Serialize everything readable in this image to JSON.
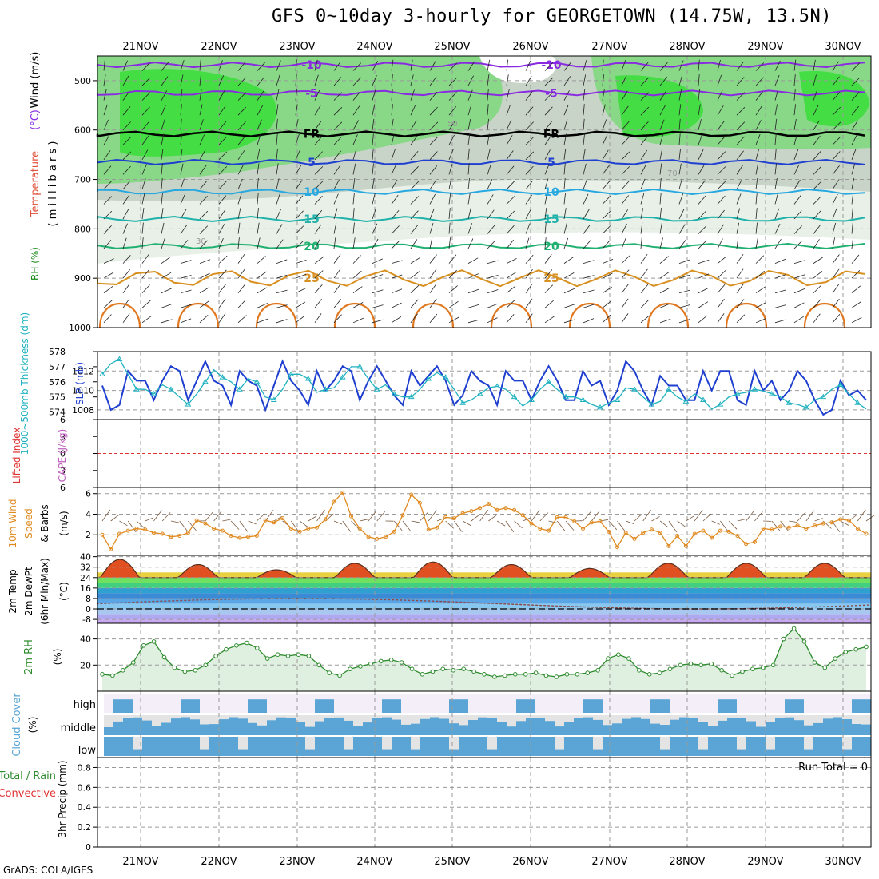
{
  "title": "GFS 0~10day 3-hourly for GEORGETOWN (14.75W, 13.5N)",
  "credit": "GrADS: COLA/IGES",
  "colors": {
    "purple": "#8a2be2",
    "blue": "#1f3fd0",
    "cyan": "#28a8e0",
    "teal": "#20b2aa",
    "green": "#20b070",
    "orange": "#d89020",
    "cloud": "#5aa5d5"
  },
  "chart_data": [
    {
      "type": "heatmap",
      "name": "upper-air",
      "dates": [
        "21NOV",
        "22NOV",
        "23NOV",
        "24NOV",
        "25NOV",
        "26NOV",
        "27NOV",
        "28NOV",
        "29NOV",
        "30NOV"
      ],
      "ylabel_parts": [
        "RH (%)",
        "Temperature",
        "(°C)",
        "Wind (m/s)",
        "( m i l l i b a r s )"
      ],
      "yticks": [
        500,
        600,
        700,
        800,
        900,
        1000
      ],
      "ylim": [
        450,
        1000
      ],
      "isotherms": [
        {
          "label": "-10",
          "p": 468,
          "color": "#8a2be2"
        },
        {
          "label": "-5",
          "p": 525,
          "color": "#8a2be2"
        },
        {
          "label": "FR",
          "p": 608,
          "color": "#000000"
        },
        {
          "label": "5",
          "p": 665,
          "color": "#1f3fd0"
        },
        {
          "label": "10",
          "p": 725,
          "color": "#28a8e0"
        },
        {
          "label": "15",
          "p": 780,
          "color": "#20b2aa"
        },
        {
          "label": "20",
          "p": 835,
          "color": "#20b070"
        },
        {
          "label": "25",
          "p": 900,
          "color": "#d89020"
        }
      ],
      "rh_labels": [
        "30",
        "50",
        "70"
      ]
    },
    {
      "type": "line",
      "name": "slp-thickness",
      "ylabel_left": "1000~500mb Thickness (dm)",
      "ylabel_right": "SLP (mb)",
      "yticks_left": [
        574,
        575,
        576,
        577,
        578
      ],
      "yticks_right": [
        1008,
        1010,
        1012
      ],
      "ylim_left": [
        573.5,
        578
      ],
      "ylim_right": [
        1007,
        1014
      ],
      "series": [
        {
          "name": "SLP",
          "axis": "right",
          "color": "#1f3fd0",
          "values": [
            1010.5,
            1008,
            1008.5,
            1012,
            1011,
            1011,
            1009,
            1011,
            1012.5,
            1012,
            1009,
            1011,
            1013,
            1011,
            1010.5,
            1008.5,
            1012,
            1011,
            1010.5,
            1008,
            1010.5,
            1013,
            1011,
            1010,
            1008.5,
            1012,
            1010,
            1011,
            1012.5,
            1012,
            1009,
            1011,
            1012.5,
            1011,
            1009.5,
            1008.5,
            1012,
            1010.5,
            1011.5,
            1012.5,
            1011,
            1008.5,
            1009.5,
            1012,
            1011,
            1010.5,
            1008.5,
            1012,
            1011,
            1011,
            1009,
            1011,
            1012.5,
            1011,
            1009,
            1009,
            1012,
            1010.5,
            1011,
            1008.5,
            1010,
            1013,
            1012,
            1010,
            1008.5,
            1011.5,
            1010.5,
            1010.5,
            1009,
            1009,
            1012,
            1010,
            1012,
            1012,
            1009,
            1008.5,
            1012,
            1010,
            1011,
            1009,
            1010,
            1012,
            1011,
            1009,
            1007.5,
            1008,
            1011,
            1009.5,
            1010,
            1009
          ]
        },
        {
          "name": "Thickness",
          "axis": "left",
          "color": "#20b2c0",
          "values": [
            576.5,
            577.2,
            577.5,
            576.5,
            575.5,
            575.5,
            575.2,
            575.8,
            575.5,
            575,
            574.5,
            575.2,
            576,
            576.8,
            576.3,
            576,
            575.5,
            576.2,
            576,
            575,
            574.8,
            575.5,
            576.5,
            576.5,
            576.2,
            575.3,
            575.5,
            575.6,
            576.3,
            577,
            577,
            576.2,
            575.5,
            575.8,
            575.2,
            575,
            575,
            575.5,
            576.2,
            576.6,
            576.3,
            575.5,
            574.6,
            574.8,
            575.2,
            575.6,
            575.7,
            575.5,
            575,
            574.4,
            574.8,
            575.5,
            576,
            575.5,
            575,
            575,
            574.8,
            574.5,
            574.3,
            574.6,
            574.8,
            575.6,
            575.5,
            575,
            574.5,
            574.7,
            575.5,
            575,
            574.7,
            575.2,
            574.8,
            574.2,
            574.5,
            575,
            575.2,
            575.3,
            575.5,
            575.4,
            575.2,
            575,
            574.6,
            574.5,
            574.3,
            574.8,
            575,
            575.5,
            575.8,
            575.2,
            574.6,
            574.2
          ]
        }
      ]
    },
    {
      "type": "line",
      "name": "lifted-index",
      "ylabel_left": "Lifted Index",
      "ylabel_right": "CAPE (J/kg)",
      "yticks": [
        -6,
        -3,
        0,
        3,
        6
      ],
      "ylim": [
        -6,
        6
      ],
      "series": []
    },
    {
      "type": "line",
      "name": "wind10m",
      "ylabel": "10m Wind Speed (m/s) & Barbs",
      "yticks": [
        2,
        4,
        6
      ],
      "ylim": [
        0,
        6.6
      ],
      "series": [
        {
          "name": "Speed",
          "color": "#e08a20",
          "values": [
            2,
            0.6,
            2.1,
            2.4,
            2.6,
            2.5,
            2.2,
            2.1,
            1.8,
            1.9,
            2.2,
            3.4,
            3.1,
            2.6,
            2.4,
            1.9,
            1.7,
            1.8,
            1.9,
            3.4,
            3.2,
            3.6,
            2.6,
            2.3,
            2.6,
            2.7,
            3.5,
            5.2,
            6.1,
            3.8,
            2.6,
            1.8,
            1.6,
            1.8,
            2.3,
            3.9,
            5.9,
            5.1,
            2.5,
            2.7,
            3.7,
            3.6,
            4.1,
            4.3,
            4.6,
            5.0,
            4.4,
            4.6,
            4.4,
            3.9,
            3.1,
            2.6,
            2.4,
            3.7,
            3.7,
            3.3,
            2.6,
            3.2,
            3.3,
            2.3,
            0.8,
            2.2,
            1.6,
            2.2,
            2.5,
            2.2,
            0.9,
            1.9,
            0.9,
            2.1,
            2.4,
            1.7,
            2.4,
            2.3,
            1.9,
            1.1,
            1.3,
            2.6,
            2.5,
            2.8,
            2.7,
            2.9,
            2.6,
            2.9,
            3.1,
            3.2,
            3.5,
            3.4,
            2.6,
            2.1
          ]
        }
      ]
    },
    {
      "type": "area",
      "name": "temperature",
      "ylabel": "2m Temp 2m DewPt (6hr Min/Max) (°C)",
      "yticks": [
        -8,
        0,
        8,
        16,
        24,
        32,
        40
      ],
      "ylim": [
        -11,
        41
      ],
      "daily_max": [
        38,
        34,
        30,
        35,
        36,
        34,
        31,
        35,
        35,
        35
      ],
      "daily_min": [
        23,
        23,
        23,
        23,
        23,
        22,
        22,
        22,
        22,
        22
      ]
    },
    {
      "type": "area",
      "name": "rh2m",
      "ylabel": "2m RH (%)",
      "yticks": [
        20,
        40
      ],
      "ylim": [
        0,
        52
      ],
      "series": [
        {
          "name": "RH",
          "color": "#2e8b2e",
          "values": [
            13,
            12,
            16,
            22,
            35,
            38,
            26,
            18,
            15,
            16,
            20,
            27,
            32,
            35,
            37,
            33,
            25,
            28,
            27,
            28,
            27,
            20,
            14,
            12,
            17,
            19,
            21,
            23,
            24,
            22,
            17,
            13,
            15,
            17,
            16,
            17,
            15,
            13,
            11,
            12,
            13,
            13,
            14,
            12,
            11,
            13,
            13,
            14,
            16,
            25,
            28,
            25,
            16,
            13,
            14,
            17,
            20,
            21,
            20,
            21,
            16,
            12,
            15,
            17,
            18,
            20,
            40,
            48,
            38,
            22,
            18,
            25,
            30,
            32,
            34
          ]
        }
      ]
    },
    {
      "type": "bar",
      "name": "cloud",
      "ylabel": "Cloud Cover (%)",
      "levels": [
        "high",
        "middle",
        "low"
      ]
    },
    {
      "type": "bar",
      "name": "precip",
      "ylabel_parts": [
        "3hr Precip (mm)",
        "Total / Rain",
        "Convective"
      ],
      "yticks": [
        0,
        0.2,
        0.4,
        0.6,
        0.8
      ],
      "ylim": [
        0,
        0.9
      ],
      "run_total": "Run Total = 0",
      "values": []
    }
  ]
}
